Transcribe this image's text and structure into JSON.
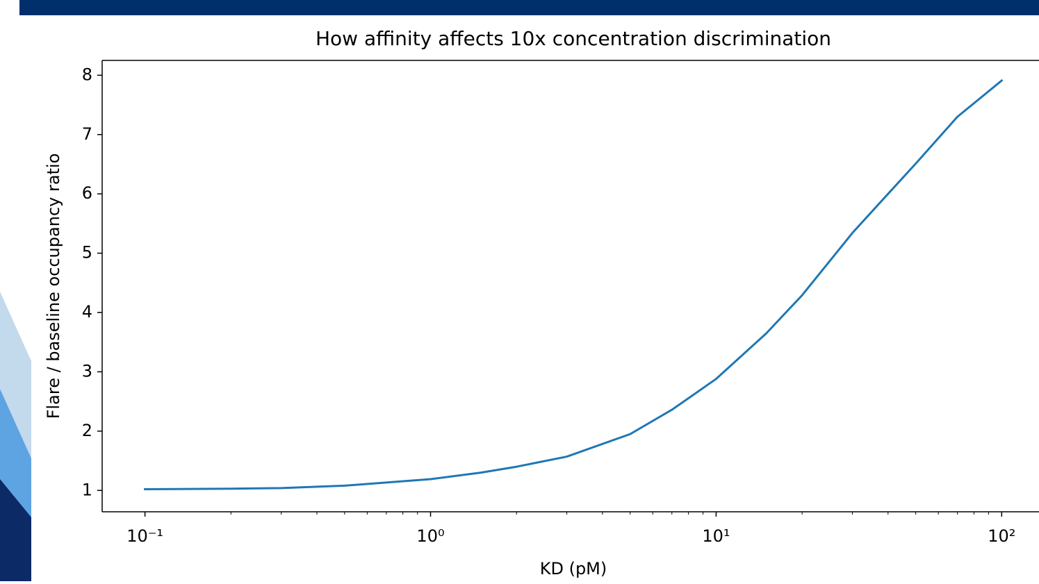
{
  "chart_data": {
    "type": "line",
    "title": "How affinity affects 10x concentration discrimination",
    "x_label": "KD (pM)",
    "y_label": "Flare / baseline occupancy ratio",
    "x": [
      0.1,
      0.2,
      0.3,
      0.5,
      1,
      1.5,
      2,
      3,
      5,
      7,
      10,
      15,
      20,
      30,
      40,
      50,
      70,
      100
    ],
    "series": [
      {
        "color": "#1f77b4",
        "values": [
          1.02,
          1.03,
          1.04,
          1.08,
          1.19,
          1.3,
          1.4,
          1.57,
          1.95,
          2.36,
          2.88,
          3.65,
          4.29,
          5.34,
          6.0,
          6.51,
          7.3,
          7.91
        ]
      }
    ],
    "xscale": "log",
    "xlim": [
      0.0708,
      141.3
    ],
    "xticks": [
      {
        "value": 0.1,
        "label": "10⁻¹"
      },
      {
        "value": 1,
        "label": "10⁰"
      },
      {
        "value": 10,
        "label": "10¹"
      },
      {
        "value": 100,
        "label": "10²"
      }
    ],
    "xminorticks": [
      0.2,
      0.3,
      0.4,
      0.5,
      0.6,
      0.7,
      0.8,
      0.9,
      2,
      3,
      4,
      5,
      6,
      7,
      8,
      9,
      20,
      30,
      40,
      50,
      60,
      70,
      80,
      90
    ],
    "ylim": [
      0.64,
      8.25
    ],
    "yticks": [
      1,
      2,
      3,
      4,
      5,
      6,
      7,
      8
    ],
    "grid": false
  }
}
